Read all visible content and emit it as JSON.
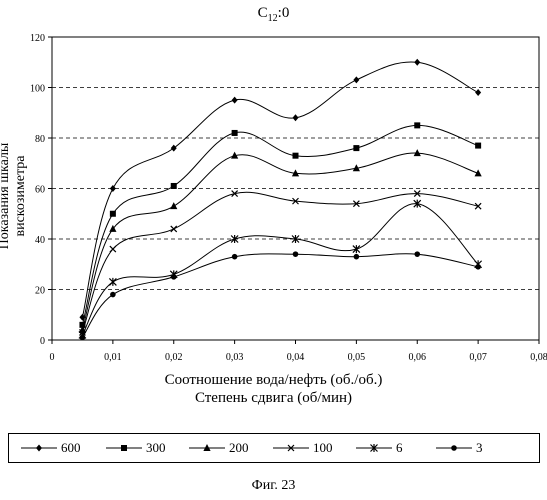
{
  "chart_data": {
    "type": "line",
    "title": "C12:0",
    "title_main": "C",
    "title_sub": "12",
    "title_tail": ":0",
    "xlabel": "Соотношение вода/нефть (об./об.)",
    "xlabel2": "Степень сдвига (об/мин)",
    "ylabel": "Показания шкалы вискозиметра",
    "xlim": [
      0,
      0.08
    ],
    "ylim": [
      0,
      120
    ],
    "x_ticks": [
      "0",
      "0,01",
      "0,02",
      "0,03",
      "0,04",
      "0,05",
      "0,06",
      "0,07",
      "0,08"
    ],
    "y_ticks": [
      "0",
      "20",
      "40",
      "60",
      "80",
      "100",
      "120"
    ],
    "grid": "horizontal dashed",
    "legend_position": "bottom",
    "x": [
      0.005,
      0.01,
      0.02,
      0.03,
      0.04,
      0.05,
      0.06,
      0.07
    ],
    "series": [
      {
        "name": "600",
        "marker": "diamond",
        "values": [
          9,
          60,
          76,
          95,
          88,
          103,
          110,
          98
        ]
      },
      {
        "name": "300",
        "marker": "square",
        "values": [
          6,
          50,
          61,
          82,
          73,
          76,
          85,
          77
        ]
      },
      {
        "name": "200",
        "marker": "triangle",
        "values": [
          4,
          44,
          53,
          73,
          66,
          68,
          74,
          66
        ]
      },
      {
        "name": "100",
        "marker": "x",
        "values": [
          3,
          36,
          44,
          58,
          55,
          54,
          58,
          53
        ]
      },
      {
        "name": "6",
        "marker": "star",
        "values": [
          2,
          23,
          26,
          40,
          40,
          36,
          54,
          30
        ]
      },
      {
        "name": "3",
        "marker": "circle",
        "values": [
          1,
          18,
          25,
          33,
          34,
          33,
          34,
          29
        ]
      }
    ]
  },
  "figure_caption": "Фиг. 23"
}
